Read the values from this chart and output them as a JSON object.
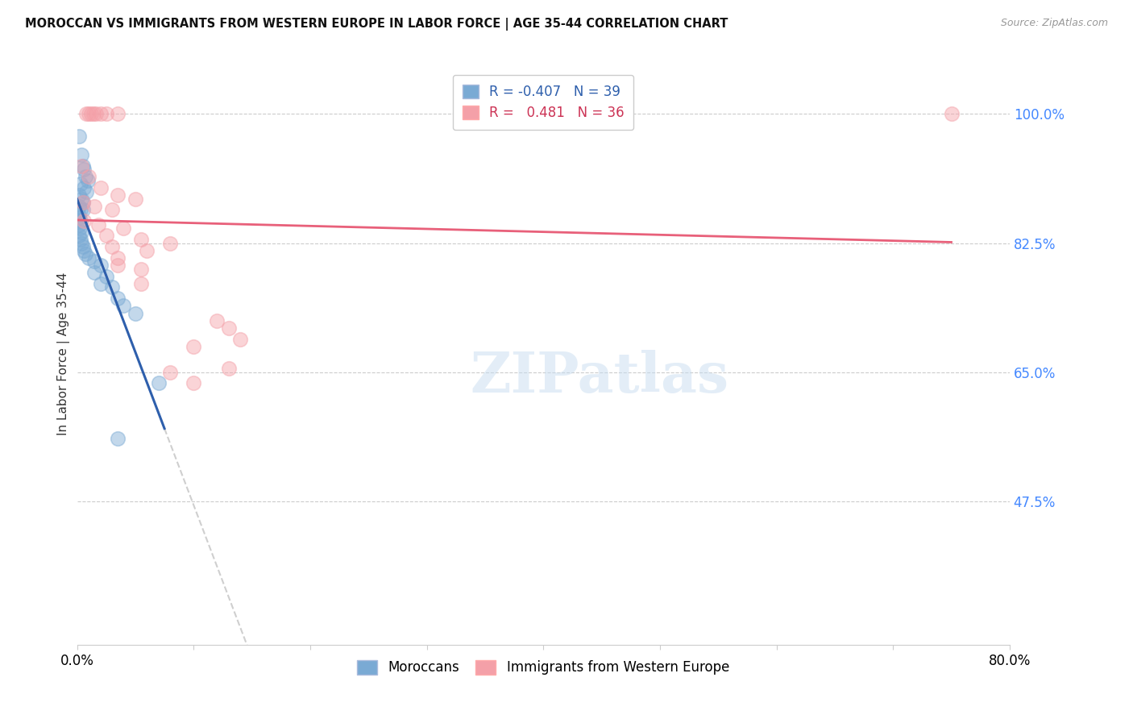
{
  "title": "MOROCCAN VS IMMIGRANTS FROM WESTERN EUROPE IN LABOR FORCE | AGE 35-44 CORRELATION CHART",
  "source": "Source: ZipAtlas.com",
  "ylabel": "In Labor Force | Age 35-44",
  "yticks": [
    47.5,
    65.0,
    82.5,
    100.0
  ],
  "ytick_labels": [
    "47.5%",
    "65.0%",
    "82.5%",
    "100.0%"
  ],
  "xmin": 0.0,
  "xmax": 80.0,
  "ymin": 28.0,
  "ymax": 107.0,
  "legend_blue_label": "Moroccans",
  "legend_pink_label": "Immigrants from Western Europe",
  "R_blue": -0.407,
  "N_blue": 39,
  "R_pink": 0.481,
  "N_pink": 36,
  "blue_color": "#7AAAD4",
  "pink_color": "#F4A0A8",
  "blue_line_color": "#2E5FAC",
  "pink_line_color": "#E8607A",
  "blue_line_solid_end": 7.5,
  "blue_line_dash_end": 65.0,
  "watermark_text": "ZIPatlas",
  "blue_points": [
    [
      0.15,
      97.0
    ],
    [
      0.4,
      94.5
    ],
    [
      0.6,
      92.5
    ],
    [
      0.5,
      93.0
    ],
    [
      0.7,
      91.5
    ],
    [
      0.9,
      91.0
    ],
    [
      0.3,
      90.5
    ],
    [
      0.6,
      90.0
    ],
    [
      0.8,
      89.5
    ],
    [
      0.2,
      89.0
    ],
    [
      0.4,
      88.5
    ],
    [
      0.5,
      88.0
    ],
    [
      0.15,
      87.5
    ],
    [
      0.3,
      87.0
    ],
    [
      0.5,
      87.0
    ],
    [
      0.1,
      86.5
    ],
    [
      0.2,
      86.0
    ],
    [
      0.3,
      85.5
    ],
    [
      0.15,
      85.0
    ],
    [
      0.25,
      84.5
    ],
    [
      0.35,
      84.0
    ],
    [
      0.2,
      83.5
    ],
    [
      0.3,
      83.0
    ],
    [
      0.4,
      82.5
    ],
    [
      0.5,
      82.0
    ],
    [
      0.6,
      81.5
    ],
    [
      0.7,
      81.0
    ],
    [
      1.0,
      80.5
    ],
    [
      1.5,
      80.0
    ],
    [
      2.0,
      79.5
    ],
    [
      1.5,
      78.5
    ],
    [
      2.5,
      78.0
    ],
    [
      2.0,
      77.0
    ],
    [
      3.0,
      76.5
    ],
    [
      3.5,
      75.0
    ],
    [
      4.0,
      74.0
    ],
    [
      5.0,
      73.0
    ],
    [
      7.0,
      63.5
    ],
    [
      3.5,
      56.0
    ]
  ],
  "pink_points": [
    [
      0.8,
      100.0
    ],
    [
      1.0,
      100.0
    ],
    [
      1.2,
      100.0
    ],
    [
      1.4,
      100.0
    ],
    [
      1.6,
      100.0
    ],
    [
      2.0,
      100.0
    ],
    [
      2.5,
      100.0
    ],
    [
      3.5,
      100.0
    ],
    [
      75.0,
      100.0
    ],
    [
      0.4,
      93.0
    ],
    [
      1.0,
      91.5
    ],
    [
      2.0,
      90.0
    ],
    [
      3.5,
      89.0
    ],
    [
      5.0,
      88.5
    ],
    [
      0.5,
      88.0
    ],
    [
      1.5,
      87.5
    ],
    [
      3.0,
      87.0
    ],
    [
      0.6,
      85.5
    ],
    [
      1.8,
      85.0
    ],
    [
      4.0,
      84.5
    ],
    [
      2.5,
      83.5
    ],
    [
      5.5,
      83.0
    ],
    [
      3.0,
      82.0
    ],
    [
      6.0,
      81.5
    ],
    [
      3.5,
      80.5
    ],
    [
      3.5,
      79.5
    ],
    [
      5.5,
      79.0
    ],
    [
      5.5,
      77.0
    ],
    [
      8.0,
      82.5
    ],
    [
      8.0,
      65.0
    ],
    [
      10.0,
      63.5
    ],
    [
      12.0,
      72.0
    ],
    [
      13.0,
      71.0
    ],
    [
      14.0,
      69.5
    ],
    [
      10.0,
      68.5
    ],
    [
      13.0,
      65.5
    ]
  ]
}
